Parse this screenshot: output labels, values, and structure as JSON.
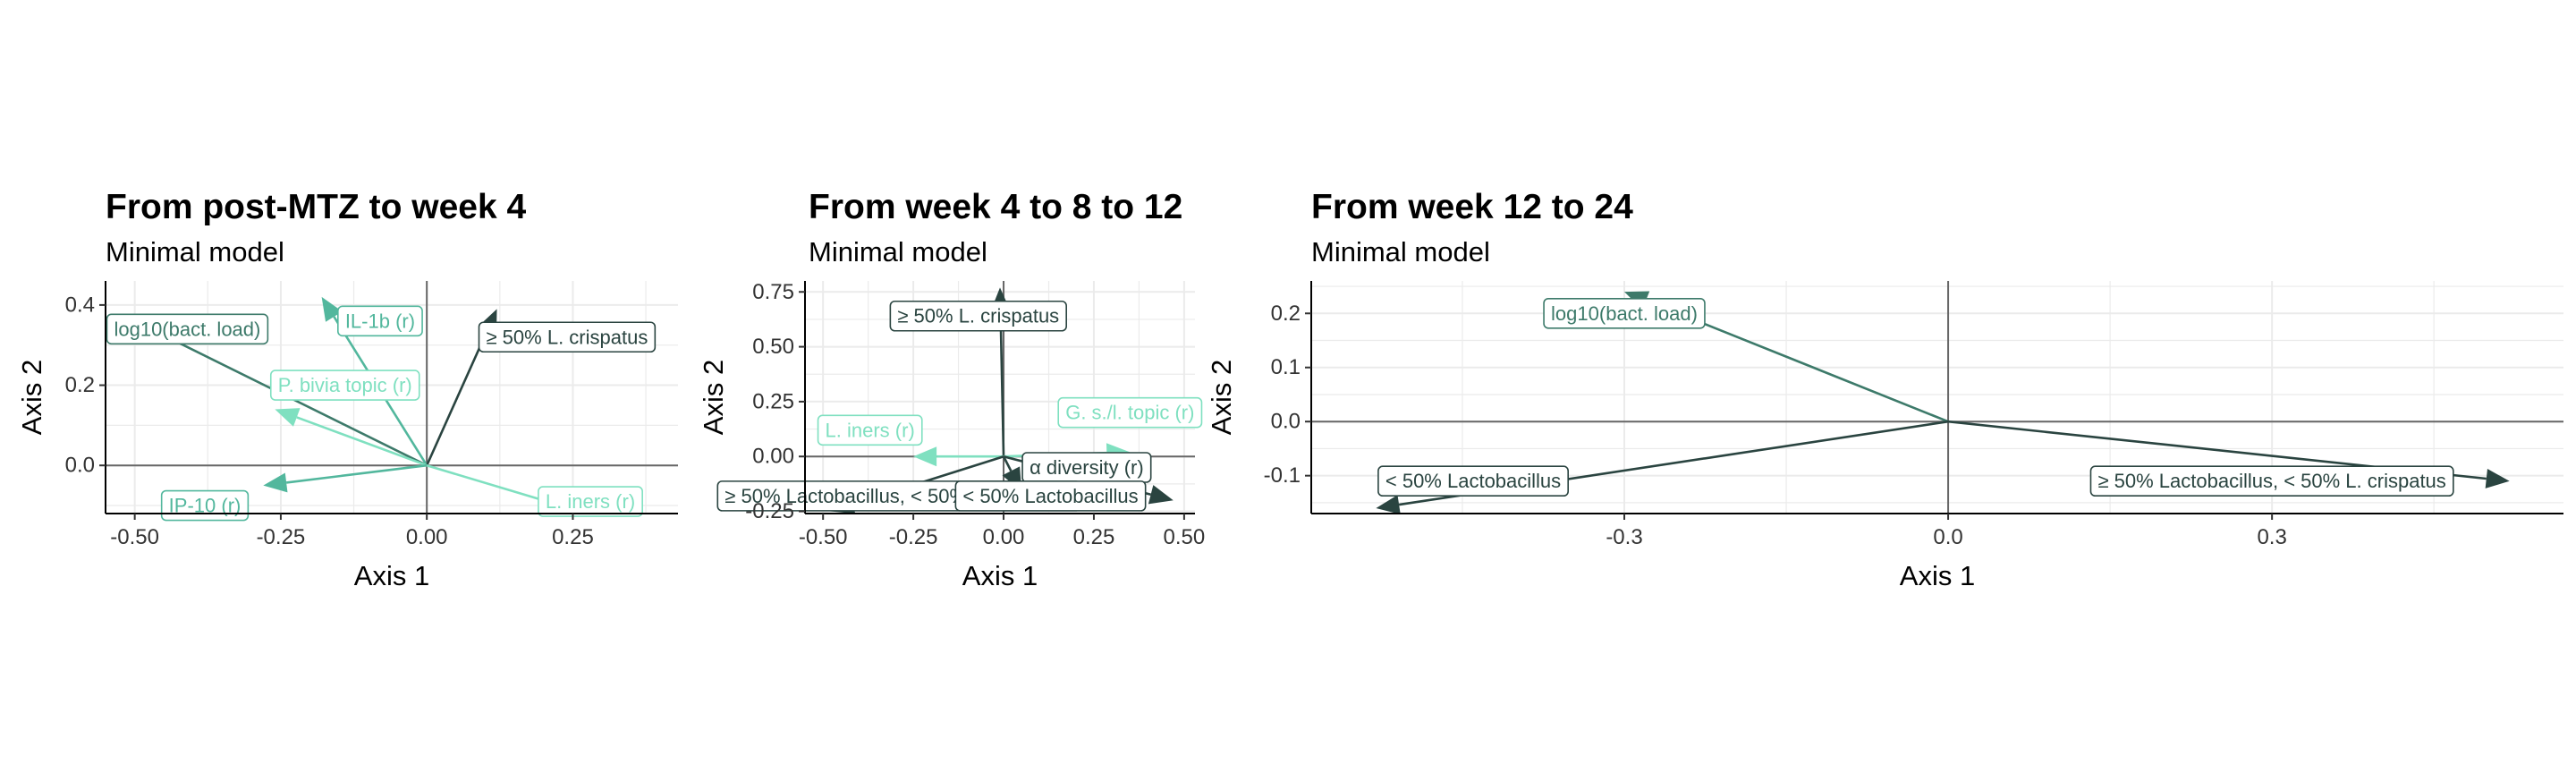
{
  "colors": {
    "dark": "#2a4440",
    "mid": "#3d7a6a",
    "teal": "#52b79d",
    "light": "#7fe0c0",
    "grid": "#ebebeb",
    "zero": "#666666"
  },
  "chart_data": [
    {
      "type": "biplot",
      "title": "From post-MTZ to week 4",
      "subtitle": "Minimal model",
      "xlabel": "Axis 1",
      "ylabel": "Axis 2",
      "xlim": [
        -0.55,
        0.43
      ],
      "ylim": [
        -0.12,
        0.46
      ],
      "xticks": [
        -0.5,
        -0.25,
        0,
        0.25
      ],
      "xtick_labels": [
        "-0.50",
        "-0.25",
        "0.00",
        "0.25"
      ],
      "yticks": [
        0,
        0.2,
        0.4
      ],
      "ytick_labels": [
        "0.0",
        "0.2",
        "0.4"
      ],
      "arrows": [
        {
          "label": "log10(bact. load)",
          "x": -0.5,
          "y": 0.36,
          "lx": -0.41,
          "ly": 0.34,
          "color": "mid"
        },
        {
          "label": "IL-1b (r)",
          "x": -0.18,
          "y": 0.42,
          "lx": -0.08,
          "ly": 0.36,
          "color": "teal"
        },
        {
          "label": "≥ 50% L. crispatus",
          "x": 0.12,
          "y": 0.39,
          "lx": 0.24,
          "ly": 0.32,
          "color": "dark"
        },
        {
          "label": "P. bivia topic (r)",
          "x": -0.26,
          "y": 0.14,
          "lx": -0.14,
          "ly": 0.2,
          "color": "light"
        },
        {
          "label": "IP-10 (r)",
          "x": -0.28,
          "y": -0.05,
          "lx": -0.38,
          "ly": -0.1,
          "color": "teal"
        },
        {
          "label": "L. iners (r)",
          "x": 0.39,
          "y": -0.17,
          "lx": 0.28,
          "ly": -0.09,
          "color": "light"
        }
      ]
    },
    {
      "type": "biplot",
      "title": "From week 4 to 8 to 12",
      "subtitle": "Minimal model",
      "xlabel": "Axis 1",
      "ylabel": "Axis 2",
      "xlim": [
        -0.55,
        0.53
      ],
      "ylim": [
        -0.26,
        0.8
      ],
      "xticks": [
        -0.5,
        -0.25,
        0,
        0.25,
        0.5
      ],
      "xtick_labels": [
        "-0.50",
        "-0.25",
        "0.00",
        "0.25",
        "0.50"
      ],
      "yticks": [
        -0.25,
        0,
        0.25,
        0.5,
        0.75
      ],
      "ytick_labels": [
        "-0.25",
        "0.00",
        "0.25",
        "0.50",
        "0.75"
      ],
      "arrows": [
        {
          "label": "≥ 50% L. crispatus",
          "x": -0.01,
          "y": 0.77,
          "lx": -0.07,
          "ly": 0.64,
          "color": "dark"
        },
        {
          "label": "G. s./l. topic (r)",
          "x": 0.35,
          "y": 0.02,
          "lx": 0.35,
          "ly": 0.2,
          "color": "light"
        },
        {
          "label": "L. iners (r)",
          "x": -0.25,
          "y": 0.0,
          "lx": -0.37,
          "ly": 0.12,
          "color": "light"
        },
        {
          "label": "α diversity (r)",
          "x": 0.47,
          "y": -0.2,
          "lx": 0.23,
          "ly": -0.05,
          "color": "dark"
        },
        {
          "label": "≥ 50% Lactobacillus, < 50% L. crispatus",
          "x": -0.48,
          "y": -0.25,
          "lx": -0.29,
          "ly": -0.18,
          "color": "dark"
        },
        {
          "label": "< 50% Lactobacillus",
          "x": 0.05,
          "y": -0.16,
          "lx": 0.13,
          "ly": -0.18,
          "color": "dark"
        }
      ]
    },
    {
      "type": "biplot",
      "title": "From week 12 to 24",
      "subtitle": "Minimal model",
      "xlabel": "Axis 1",
      "ylabel": "Axis 2",
      "xlim": [
        -0.59,
        0.57
      ],
      "ylim": [
        -0.17,
        0.26
      ],
      "xticks": [
        -0.3,
        0,
        0.3
      ],
      "xtick_labels": [
        "-0.3",
        "0.0",
        "0.3"
      ],
      "yticks": [
        -0.1,
        0,
        0.1,
        0.2
      ],
      "ytick_labels": [
        "-0.1",
        "0.0",
        "0.1",
        "0.2"
      ],
      "arrows": [
        {
          "label": "log10(bact. load)",
          "x": -0.3,
          "y": 0.24,
          "lx": -0.3,
          "ly": 0.2,
          "color": "mid"
        },
        {
          "label": "< 50% Lactobacillus",
          "x": -0.53,
          "y": -0.16,
          "lx": -0.44,
          "ly": -0.11,
          "color": "dark"
        },
        {
          "label": "≥ 50% Lactobacillus, < 50% L. crispatus",
          "x": 0.52,
          "y": -0.11,
          "lx": 0.3,
          "ly": -0.11,
          "color": "dark"
        }
      ]
    }
  ]
}
